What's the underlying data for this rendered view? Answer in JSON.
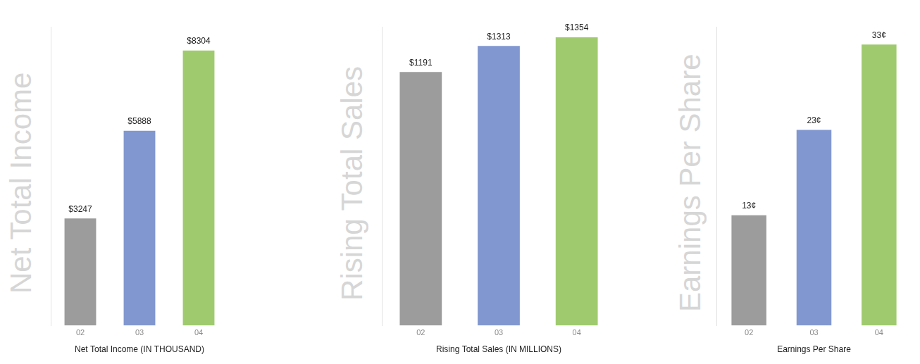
{
  "chart_data": [
    {
      "type": "bar",
      "title": "Net Total Income",
      "x_label": "Net Total Income (IN THOUSAND)",
      "categories": [
        "02",
        "03",
        "04"
      ],
      "values": [
        3247,
        5888,
        8304
      ],
      "value_labels": [
        "$3247",
        "$5888",
        "$8304"
      ],
      "colors": [
        "#9c9c9c",
        "#8197d0",
        "#9fcb6e"
      ],
      "ylim": [
        0,
        9000
      ],
      "data_labels": true,
      "tick_labels": "x",
      "grid": false
    },
    {
      "type": "bar",
      "title": "Rising Total Sales",
      "x_label": "Rising Total Sales (IN MILLIONS)",
      "categories": [
        "02",
        "03",
        "04"
      ],
      "values": [
        1191,
        1313,
        1354
      ],
      "value_labels": [
        "$1191",
        "$1313",
        "$1354"
      ],
      "colors": [
        "#9c9c9c",
        "#8197d0",
        "#9fcb6e"
      ],
      "ylim": [
        0,
        1400
      ],
      "data_labels": true,
      "tick_labels": "x",
      "grid": false
    },
    {
      "type": "bar",
      "title": "Earnings Per Share",
      "x_label": "Earnings Per Share",
      "categories": [
        "02",
        "03",
        "04"
      ],
      "values": [
        13,
        23,
        33
      ],
      "value_labels": [
        "13¢",
        "23¢",
        "33¢"
      ],
      "colors": [
        "#9c9c9c",
        "#8197d0",
        "#9fcb6e"
      ],
      "ylim": [
        0,
        35
      ],
      "data_labels": true,
      "tick_labels": "x",
      "grid": false
    }
  ]
}
